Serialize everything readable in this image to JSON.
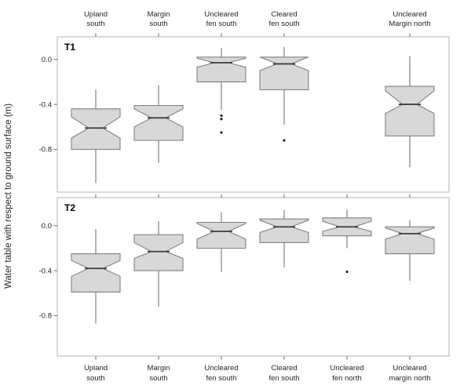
{
  "chart_data": {
    "type": "boxplot",
    "notched": true,
    "title": "",
    "ylabel": "Water table with respect to ground surface (m)",
    "y_ticks": {
      "values": [
        0.0,
        -0.4,
        -0.8
      ],
      "labels": [
        "0.0",
        "-0.4",
        "-0.8"
      ]
    },
    "categories": [
      "Upland south",
      "Margin south",
      "Uncleared fen south",
      "Cleared fen south",
      "Uncleared fen north",
      "Uncleared margin north"
    ],
    "top_axis_labels": [
      [
        "Upland",
        "south"
      ],
      [
        "Margin",
        "south"
      ],
      [
        "Uncleared",
        "fen south"
      ],
      [
        "Cleared",
        "fen south"
      ],
      null,
      [
        "Uncleared",
        "Margin north"
      ]
    ],
    "bottom_axis_labels": [
      [
        "Upland",
        "south"
      ],
      [
        "Margin",
        "south"
      ],
      [
        "Uncleared",
        "fen south"
      ],
      [
        "Cleared",
        "fen south"
      ],
      [
        "Uncleared",
        "fen north"
      ],
      [
        "Uncleared",
        "margin north"
      ]
    ],
    "panels": [
      {
        "label": "T1",
        "ylim": [
          -1.18,
          0.2
        ],
        "boxes": [
          {
            "category": 0,
            "whisker_low": -1.1,
            "q1": -0.8,
            "median": -0.61,
            "q3": -0.44,
            "whisker_high": -0.27,
            "notch_low": -0.7,
            "notch_high": -0.51,
            "outliers": []
          },
          {
            "category": 1,
            "whisker_low": -0.92,
            "q1": -0.72,
            "median": -0.52,
            "q3": -0.41,
            "whisker_high": -0.23,
            "notch_low": -0.6,
            "notch_high": -0.44,
            "outliers": []
          },
          {
            "category": 2,
            "whisker_low": -0.45,
            "q1": -0.2,
            "median": -0.03,
            "q3": 0.02,
            "whisker_high": 0.1,
            "notch_low": -0.07,
            "notch_high": 0.01,
            "outliers": [
              -0.5,
              -0.53,
              -0.65
            ]
          },
          {
            "category": 3,
            "whisker_low": -0.58,
            "q1": -0.27,
            "median": -0.04,
            "q3": 0.02,
            "whisker_high": 0.11,
            "notch_low": -0.1,
            "notch_high": 0.02,
            "outliers": [
              -0.72
            ]
          },
          {
            "category": 5,
            "whisker_low": -0.96,
            "q1": -0.68,
            "median": -0.4,
            "q3": -0.24,
            "whisker_high": 0.03,
            "notch_low": -0.48,
            "notch_high": -0.28,
            "outliers": []
          }
        ]
      },
      {
        "label": "T2",
        "ylim": [
          -1.16,
          0.25
        ],
        "boxes": [
          {
            "category": 0,
            "whisker_low": -0.87,
            "q1": -0.59,
            "median": -0.38,
            "q3": -0.25,
            "whisker_high": -0.03,
            "notch_low": -0.45,
            "notch_high": -0.31,
            "outliers": []
          },
          {
            "category": 1,
            "whisker_low": -0.72,
            "q1": -0.4,
            "median": -0.23,
            "q3": -0.08,
            "whisker_high": 0.04,
            "notch_low": -0.29,
            "notch_high": -0.15,
            "outliers": []
          },
          {
            "category": 2,
            "whisker_low": -0.41,
            "q1": -0.2,
            "median": -0.05,
            "q3": 0.03,
            "whisker_high": 0.12,
            "notch_low": -0.12,
            "notch_high": 0.02,
            "outliers": []
          },
          {
            "category": 3,
            "whisker_low": -0.37,
            "q1": -0.15,
            "median": -0.01,
            "q3": 0.06,
            "whisker_high": 0.14,
            "notch_low": -0.06,
            "notch_high": 0.05,
            "outliers": []
          },
          {
            "category": 4,
            "whisker_low": -0.2,
            "q1": -0.09,
            "median": -0.01,
            "q3": 0.07,
            "whisker_high": 0.14,
            "notch_low": -0.05,
            "notch_high": 0.04,
            "outliers": [
              -0.41
            ]
          },
          {
            "category": 5,
            "whisker_low": -0.49,
            "q1": -0.25,
            "median": -0.07,
            "q3": -0.01,
            "whisker_high": 0.05,
            "notch_low": -0.12,
            "notch_high": -0.02,
            "outliers": []
          }
        ]
      }
    ],
    "colors": {
      "box_fill": "#d8d8d8",
      "box_stroke": "#808080",
      "median": "#3f3f3f",
      "whisker": "#808080",
      "outlier": "#1f1f1f",
      "panel_border": "#b3b3b3",
      "tick": "#666666",
      "text": "#262626"
    }
  }
}
